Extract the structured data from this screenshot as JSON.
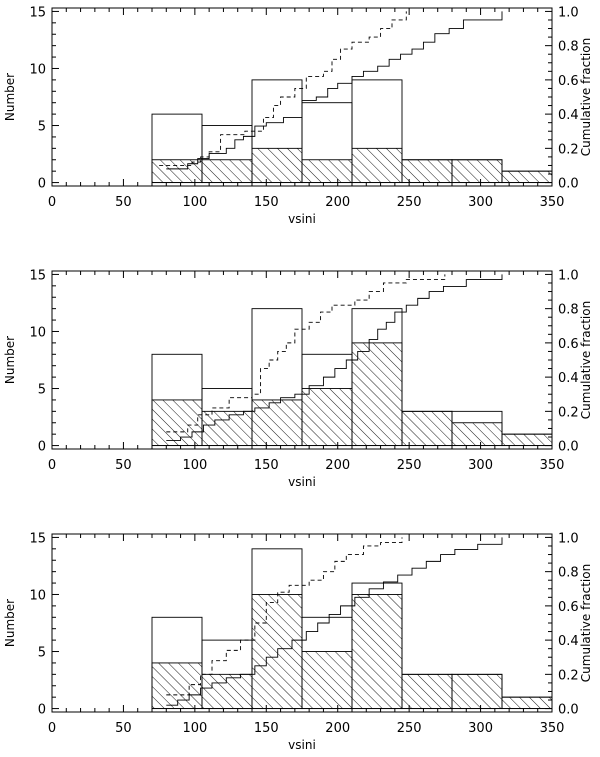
{
  "chart_data": [
    {
      "type": "bar",
      "xlabel": "vsini",
      "ylabel": "Number",
      "y2label": "Cumulative fraction",
      "xlim": [
        0,
        350
      ],
      "ylim": [
        -0.3,
        15.3
      ],
      "y2lim": [
        -0.02,
        1.02
      ],
      "xticks": [
        "0",
        "50",
        "100",
        "150",
        "200",
        "250",
        "300",
        "350"
      ],
      "yticks": [
        "0",
        "5",
        "10",
        "15"
      ],
      "y2ticks": [
        "0.0",
        "0.2",
        "0.4",
        "0.6",
        "0.8",
        "1.0"
      ],
      "bin_edges": [
        70,
        105,
        140,
        175,
        210,
        245,
        280,
        315,
        350
      ],
      "series": [
        {
          "style": "open",
          "values": [
            6,
            5,
            9,
            7,
            9,
            2,
            2,
            1
          ]
        },
        {
          "style": "hatched",
          "values": [
            2,
            2,
            3,
            2,
            3,
            2,
            2,
            1
          ]
        }
      ],
      "cumulative": [
        {
          "style": "solid",
          "points": [
            [
              80,
              0.08
            ],
            [
              90,
              0.08
            ],
            [
              95,
              0.11
            ],
            [
              102,
              0.14
            ],
            [
              110,
              0.17
            ],
            [
              122,
              0.2
            ],
            [
              128,
              0.25
            ],
            [
              134,
              0.27
            ],
            [
              142,
              0.33
            ],
            [
              150,
              0.35
            ],
            [
              162,
              0.38
            ],
            [
              175,
              0.48
            ],
            [
              185,
              0.5
            ],
            [
              193,
              0.55
            ],
            [
              200,
              0.58
            ],
            [
              210,
              0.62
            ],
            [
              218,
              0.65
            ],
            [
              228,
              0.68
            ],
            [
              236,
              0.72
            ],
            [
              244,
              0.75
            ],
            [
              252,
              0.78
            ],
            [
              260,
              0.82
            ],
            [
              268,
              0.87
            ],
            [
              278,
              0.9
            ],
            [
              288,
              0.95
            ],
            [
              315,
              1.0
            ]
          ]
        },
        {
          "style": "dashed",
          "points": [
            [
              75,
              0.1
            ],
            [
              80,
              0.1
            ],
            [
              98,
              0.12
            ],
            [
              104,
              0.15
            ],
            [
              110,
              0.18
            ],
            [
              118,
              0.28
            ],
            [
              135,
              0.3
            ],
            [
              148,
              0.38
            ],
            [
              155,
              0.45
            ],
            [
              160,
              0.5
            ],
            [
              170,
              0.55
            ],
            [
              178,
              0.62
            ],
            [
              190,
              0.65
            ],
            [
              196,
              0.72
            ],
            [
              202,
              0.78
            ],
            [
              210,
              0.82
            ],
            [
              222,
              0.85
            ],
            [
              230,
              0.9
            ],
            [
              238,
              0.95
            ],
            [
              248,
              1.0
            ]
          ]
        }
      ]
    },
    {
      "type": "bar",
      "xlabel": "vsini",
      "ylabel": "Number",
      "y2label": "Cumulative fraction",
      "xlim": [
        0,
        350
      ],
      "ylim": [
        -0.3,
        15.3
      ],
      "y2lim": [
        -0.02,
        1.02
      ],
      "xticks": [
        "0",
        "50",
        "100",
        "150",
        "200",
        "250",
        "300",
        "350"
      ],
      "yticks": [
        "0",
        "5",
        "10",
        "15"
      ],
      "y2ticks": [
        "0.0",
        "0.2",
        "0.4",
        "0.6",
        "0.8",
        "1.0"
      ],
      "bin_edges": [
        70,
        105,
        140,
        175,
        210,
        245,
        280,
        315,
        350
      ],
      "series": [
        {
          "style": "open",
          "values": [
            8,
            5,
            12,
            8,
            12,
            3,
            3,
            1
          ]
        },
        {
          "style": "hatched",
          "values": [
            4,
            3,
            4,
            5,
            9,
            3,
            2,
            1
          ]
        }
      ],
      "cumulative": [
        {
          "style": "solid",
          "points": [
            [
              80,
              0.03
            ],
            [
              90,
              0.05
            ],
            [
              98,
              0.08
            ],
            [
              106,
              0.12
            ],
            [
              114,
              0.15
            ],
            [
              124,
              0.18
            ],
            [
              134,
              0.2
            ],
            [
              142,
              0.22
            ],
            [
              152,
              0.25
            ],
            [
              160,
              0.28
            ],
            [
              170,
              0.3
            ],
            [
              180,
              0.35
            ],
            [
              190,
              0.4
            ],
            [
              198,
              0.45
            ],
            [
              206,
              0.5
            ],
            [
              214,
              0.55
            ],
            [
              222,
              0.62
            ],
            [
              228,
              0.68
            ],
            [
              234,
              0.72
            ],
            [
              240,
              0.78
            ],
            [
              248,
              0.82
            ],
            [
              256,
              0.86
            ],
            [
              264,
              0.9
            ],
            [
              274,
              0.93
            ],
            [
              290,
              0.97
            ],
            [
              315,
              1.0
            ]
          ]
        },
        {
          "style": "dashed",
          "points": [
            [
              80,
              0.08
            ],
            [
              95,
              0.12
            ],
            [
              102,
              0.18
            ],
            [
              112,
              0.22
            ],
            [
              124,
              0.28
            ],
            [
              140,
              0.3
            ],
            [
              146,
              0.45
            ],
            [
              152,
              0.5
            ],
            [
              158,
              0.55
            ],
            [
              164,
              0.6
            ],
            [
              170,
              0.68
            ],
            [
              180,
              0.72
            ],
            [
              188,
              0.78
            ],
            [
              196,
              0.82
            ],
            [
              212,
              0.85
            ],
            [
              222,
              0.9
            ],
            [
              232,
              0.95
            ],
            [
              248,
              0.97
            ],
            [
              275,
              1.0
            ]
          ]
        }
      ]
    },
    {
      "type": "bar",
      "xlabel": "vsini",
      "ylabel": "Number",
      "y2label": "Cumulative fraction",
      "xlim": [
        0,
        350
      ],
      "ylim": [
        -0.3,
        15.3
      ],
      "y2lim": [
        -0.02,
        1.02
      ],
      "xticks": [
        "0",
        "50",
        "100",
        "150",
        "200",
        "250",
        "300",
        "350"
      ],
      "yticks": [
        "0",
        "5",
        "10",
        "15"
      ],
      "y2ticks": [
        "0.0",
        "0.2",
        "0.4",
        "0.6",
        "0.8",
        "1.0"
      ],
      "bin_edges": [
        70,
        105,
        140,
        175,
        210,
        245,
        280,
        315,
        350
      ],
      "series": [
        {
          "style": "open",
          "values": [
            8,
            6,
            14,
            8,
            11,
            3,
            3,
            1
          ]
        },
        {
          "style": "hatched",
          "values": [
            4,
            3,
            10,
            5,
            10,
            3,
            3,
            1
          ]
        }
      ],
      "cumulative": [
        {
          "style": "solid",
          "points": [
            [
              80,
              0.02
            ],
            [
              88,
              0.05
            ],
            [
              96,
              0.08
            ],
            [
              104,
              0.12
            ],
            [
              112,
              0.15
            ],
            [
              122,
              0.18
            ],
            [
              132,
              0.2
            ],
            [
              142,
              0.25
            ],
            [
              150,
              0.3
            ],
            [
              158,
              0.35
            ],
            [
              168,
              0.4
            ],
            [
              178,
              0.45
            ],
            [
              186,
              0.5
            ],
            [
              194,
              0.55
            ],
            [
              202,
              0.6
            ],
            [
              212,
              0.65
            ],
            [
              222,
              0.7
            ],
            [
              232,
              0.74
            ],
            [
              242,
              0.78
            ],
            [
              252,
              0.82
            ],
            [
              262,
              0.86
            ],
            [
              272,
              0.9
            ],
            [
              282,
              0.93
            ],
            [
              298,
              0.96
            ],
            [
              315,
              1.0
            ]
          ]
        },
        {
          "style": "dashed",
          "points": [
            [
              80,
              0.08
            ],
            [
              96,
              0.14
            ],
            [
              104,
              0.2
            ],
            [
              112,
              0.28
            ],
            [
              122,
              0.34
            ],
            [
              132,
              0.4
            ],
            [
              142,
              0.5
            ],
            [
              150,
              0.62
            ],
            [
              158,
              0.68
            ],
            [
              166,
              0.72
            ],
            [
              180,
              0.75
            ],
            [
              190,
              0.8
            ],
            [
              198,
              0.86
            ],
            [
              206,
              0.9
            ],
            [
              218,
              0.95
            ],
            [
              230,
              0.97
            ],
            [
              245,
              1.0
            ]
          ]
        }
      ]
    }
  ]
}
